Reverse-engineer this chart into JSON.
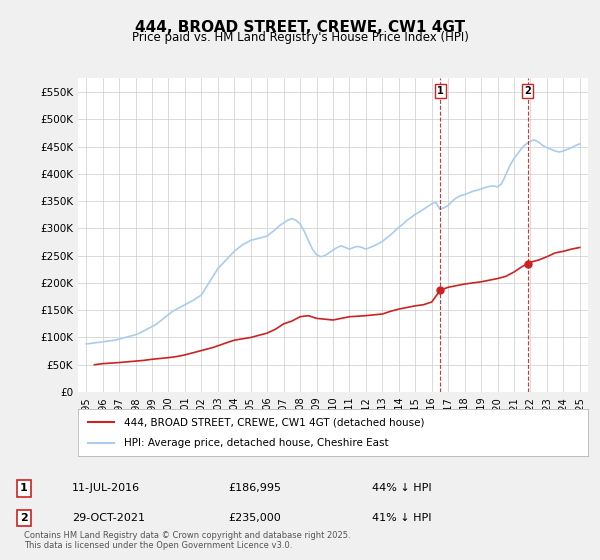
{
  "title": "444, BROAD STREET, CREWE, CW1 4GT",
  "subtitle": "Price paid vs. HM Land Registry's House Price Index (HPI)",
  "xlabel": "",
  "ylabel": "",
  "ylim": [
    0,
    575000
  ],
  "yticks": [
    0,
    50000,
    100000,
    150000,
    200000,
    250000,
    300000,
    350000,
    400000,
    450000,
    500000,
    550000
  ],
  "ytick_labels": [
    "£0",
    "£50K",
    "£100K",
    "£150K",
    "£200K",
    "£250K",
    "£300K",
    "£350K",
    "£400K",
    "£450K",
    "£500K",
    "£550K"
  ],
  "background_color": "#f0f0f0",
  "plot_bg_color": "#ffffff",
  "grid_color": "#cccccc",
  "hpi_color": "#aaccee",
  "property_color": "#cc2222",
  "vline_color": "#cc0000",
  "marker1_date": 2016.53,
  "marker2_date": 2021.83,
  "marker1_price": 186995,
  "marker2_price": 235000,
  "legend_label1": "444, BROAD STREET, CREWE, CW1 4GT (detached house)",
  "legend_label2": "HPI: Average price, detached house, Cheshire East",
  "annotation1": "1   11-JUL-2016        £186,995        44% ↓ HPI",
  "annotation2": "2   29-OCT-2021        £235,000        41% ↓ HPI",
  "copyright_text": "Contains HM Land Registry data © Crown copyright and database right 2025.\nThis data is licensed under the Open Government Licence v3.0.",
  "hpi_x": [
    1995.0,
    1995.25,
    1995.5,
    1995.75,
    1996.0,
    1996.25,
    1996.5,
    1996.75,
    1997.0,
    1997.25,
    1997.5,
    1997.75,
    1998.0,
    1998.25,
    1998.5,
    1998.75,
    1999.0,
    1999.25,
    1999.5,
    1999.75,
    2000.0,
    2000.25,
    2000.5,
    2000.75,
    2001.0,
    2001.25,
    2001.5,
    2001.75,
    2002.0,
    2002.25,
    2002.5,
    2002.75,
    2003.0,
    2003.25,
    2003.5,
    2003.75,
    2004.0,
    2004.25,
    2004.5,
    2004.75,
    2005.0,
    2005.25,
    2005.5,
    2005.75,
    2006.0,
    2006.25,
    2006.5,
    2006.75,
    2007.0,
    2007.25,
    2007.5,
    2007.75,
    2008.0,
    2008.25,
    2008.5,
    2008.75,
    2009.0,
    2009.25,
    2009.5,
    2009.75,
    2010.0,
    2010.25,
    2010.5,
    2010.75,
    2011.0,
    2011.25,
    2011.5,
    2011.75,
    2012.0,
    2012.25,
    2012.5,
    2012.75,
    2013.0,
    2013.25,
    2013.5,
    2013.75,
    2014.0,
    2014.25,
    2014.5,
    2014.75,
    2015.0,
    2015.25,
    2015.5,
    2015.75,
    2016.0,
    2016.25,
    2016.5,
    2016.75,
    2017.0,
    2017.25,
    2017.5,
    2017.75,
    2018.0,
    2018.25,
    2018.5,
    2018.75,
    2019.0,
    2019.25,
    2019.5,
    2019.75,
    2020.0,
    2020.25,
    2020.5,
    2020.75,
    2021.0,
    2021.25,
    2021.5,
    2021.75,
    2022.0,
    2022.25,
    2022.5,
    2022.75,
    2023.0,
    2023.25,
    2023.5,
    2023.75,
    2024.0,
    2024.25,
    2024.5,
    2024.75,
    2025.0
  ],
  "hpi_y": [
    88000,
    89000,
    90000,
    91000,
    92000,
    93000,
    94000,
    95000,
    97000,
    99000,
    101000,
    103000,
    105000,
    108000,
    112000,
    116000,
    120000,
    124000,
    130000,
    136000,
    142000,
    148000,
    152000,
    156000,
    160000,
    164000,
    168000,
    173000,
    178000,
    190000,
    202000,
    214000,
    226000,
    234000,
    242000,
    250000,
    258000,
    264000,
    270000,
    274000,
    278000,
    280000,
    282000,
    284000,
    286000,
    292000,
    298000,
    305000,
    310000,
    315000,
    318000,
    315000,
    308000,
    295000,
    278000,
    262000,
    252000,
    248000,
    250000,
    255000,
    260000,
    265000,
    268000,
    265000,
    262000,
    265000,
    267000,
    265000,
    262000,
    265000,
    268000,
    272000,
    276000,
    282000,
    288000,
    295000,
    302000,
    308000,
    315000,
    320000,
    326000,
    330000,
    335000,
    340000,
    345000,
    348000,
    335000,
    338000,
    342000,
    350000,
    356000,
    360000,
    362000,
    365000,
    368000,
    370000,
    372000,
    375000,
    377000,
    378000,
    376000,
    382000,
    398000,
    415000,
    428000,
    438000,
    448000,
    455000,
    460000,
    462000,
    458000,
    452000,
    448000,
    445000,
    442000,
    440000,
    442000,
    445000,
    448000,
    452000,
    455000
  ],
  "prop_x": [
    1995.5,
    1996.0,
    1997.0,
    1997.75,
    1998.5,
    1999.0,
    2000.0,
    2000.5,
    2001.0,
    2001.5,
    2002.0,
    2002.75,
    2003.5,
    2004.0,
    2005.0,
    2006.0,
    2006.5,
    2007.0,
    2007.5,
    2008.0,
    2008.5,
    2009.0,
    2010.0,
    2010.5,
    2011.0,
    2012.0,
    2013.0,
    2013.5,
    2014.0,
    2014.5,
    2015.0,
    2015.5,
    2016.0,
    2016.53,
    2017.0,
    2017.5,
    2018.0,
    2018.5,
    2019.0,
    2019.5,
    2020.0,
    2020.5,
    2021.0,
    2021.5,
    2021.83,
    2022.0,
    2022.5,
    2023.0,
    2023.5,
    2024.0,
    2024.5,
    2025.0
  ],
  "prop_y": [
    50000,
    52000,
    54000,
    56000,
    58000,
    60000,
    63000,
    65000,
    68000,
    72000,
    76000,
    82000,
    90000,
    95000,
    100000,
    108000,
    115000,
    125000,
    130000,
    138000,
    140000,
    135000,
    132000,
    135000,
    138000,
    140000,
    143000,
    148000,
    152000,
    155000,
    158000,
    160000,
    165000,
    186995,
    192000,
    195000,
    198000,
    200000,
    202000,
    205000,
    208000,
    212000,
    220000,
    230000,
    235000,
    238000,
    242000,
    248000,
    255000,
    258000,
    262000,
    265000
  ]
}
